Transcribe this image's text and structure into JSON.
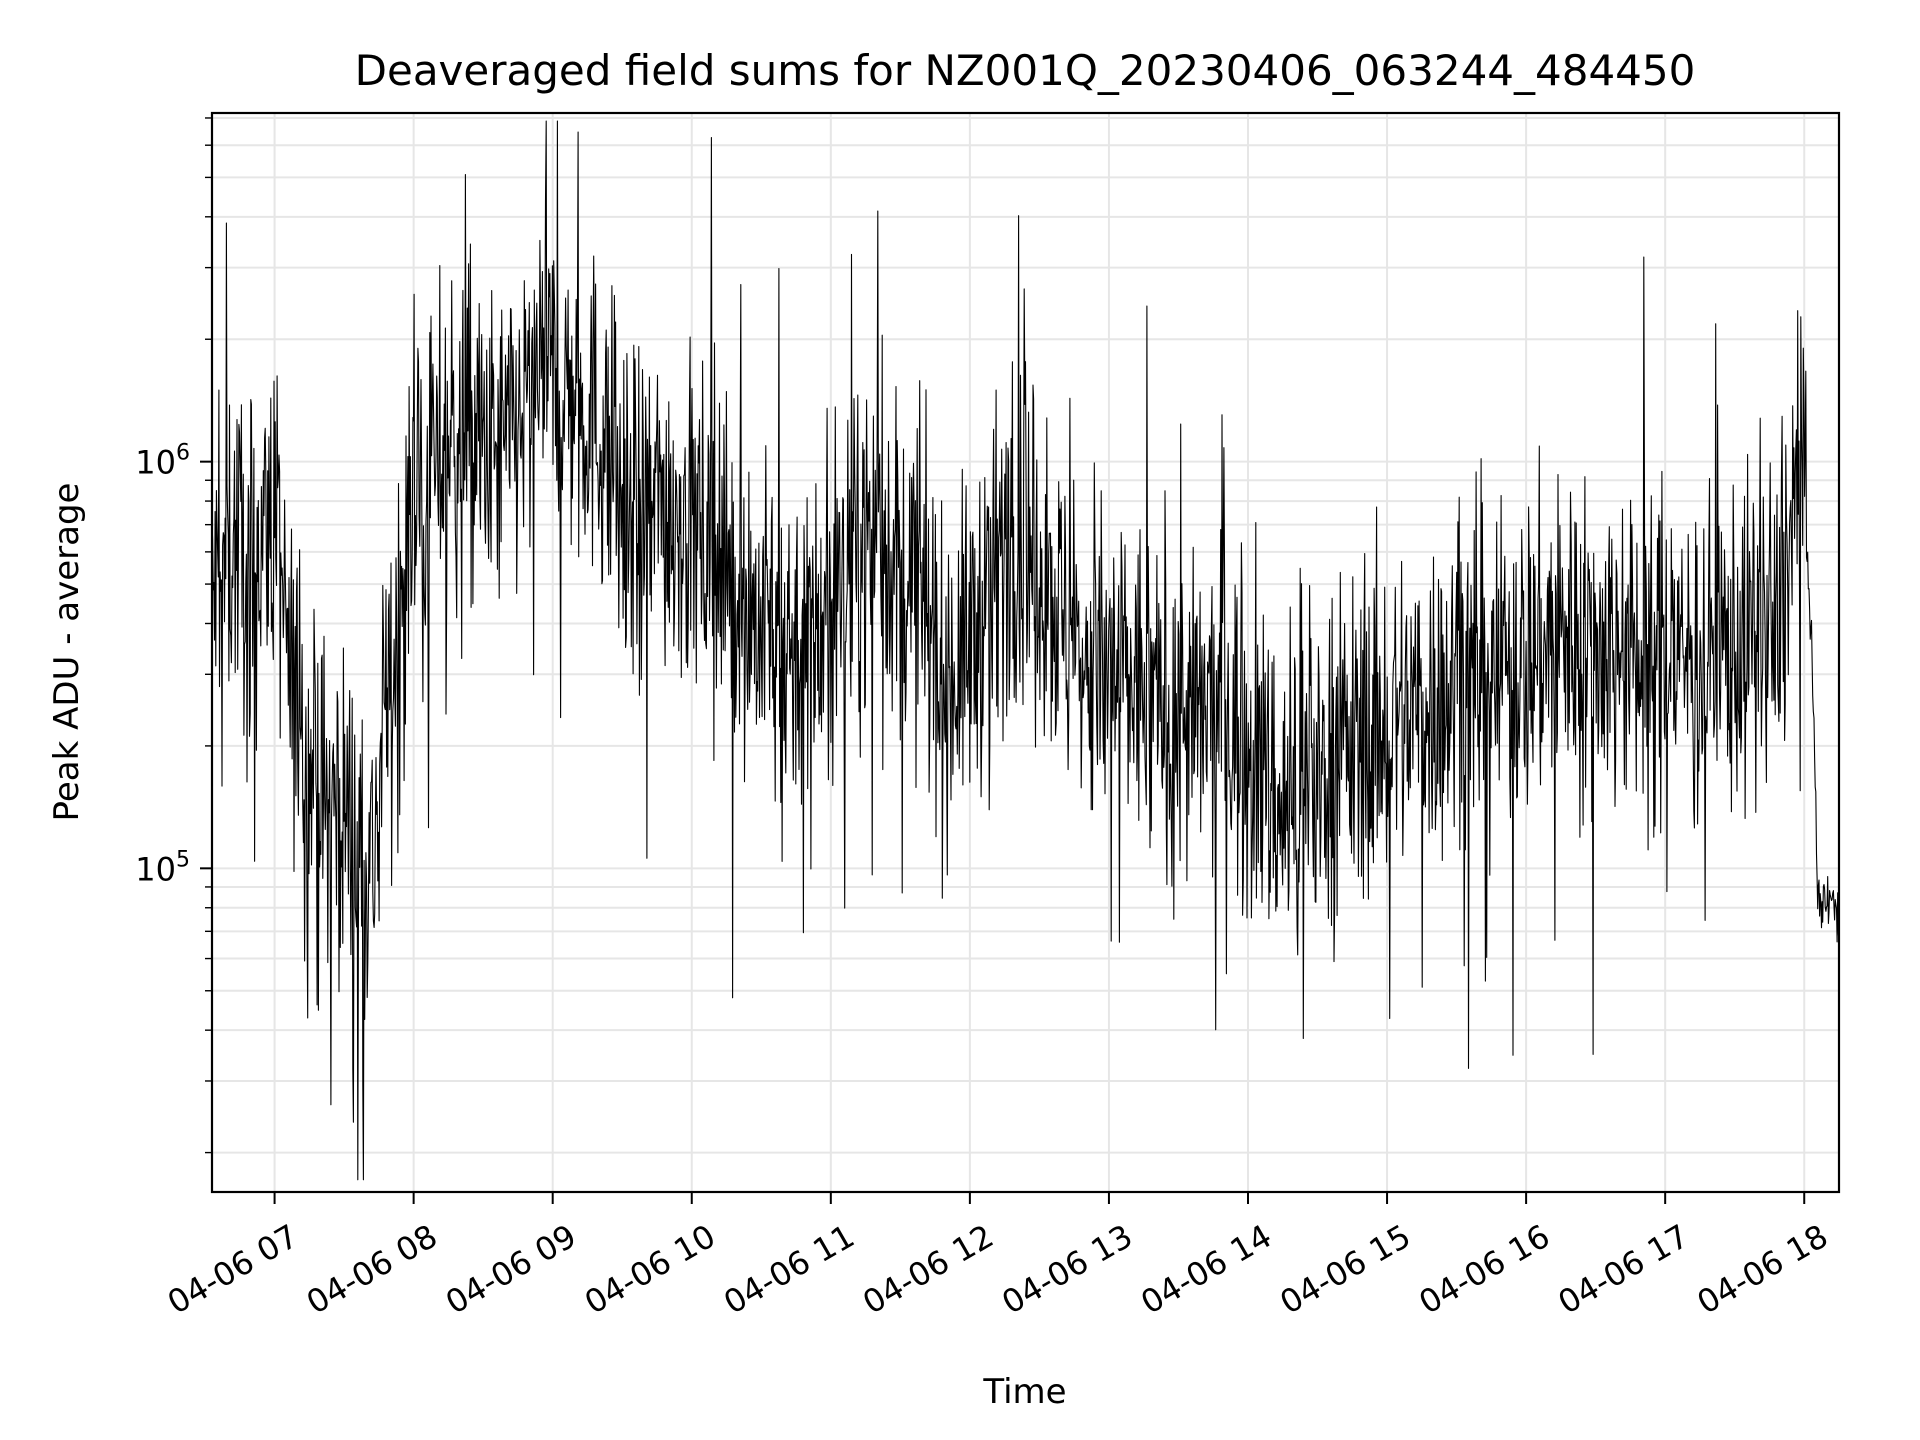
{
  "chart_data": {
    "type": "line",
    "title": "Deaveraged field sums for NZ001Q_20230406_063244_484450",
    "xlabel": "Time",
    "ylabel": "Peak ADU - average",
    "yscale": "log",
    "ylim": [
      16000,
      7200000
    ],
    "xlim_hours": [
      6.55,
      18.25
    ],
    "x_tick_labels": [
      "04-06 07",
      "04-06 08",
      "04-06 09",
      "04-06 10",
      "04-06 11",
      "04-06 12",
      "04-06 13",
      "04-06 14",
      "04-06 15",
      "04-06 16",
      "04-06 17",
      "04-06 18"
    ],
    "y_tick_labels": [
      {
        "base": "10",
        "exp": "5",
        "value": 100000
      },
      {
        "base": "10",
        "exp": "6",
        "value": 1000000
      }
    ],
    "grid": true,
    "line_color": "#000000",
    "series": [
      {
        "x_hours": [
          6.55,
          6.7,
          6.85,
          7.0,
          7.1,
          7.3,
          7.5,
          7.7,
          7.8,
          8.0,
          8.3,
          8.6,
          8.9,
          9.0,
          9.3,
          9.6,
          9.8,
          10.0,
          10.3,
          10.6,
          10.9,
          11.0,
          11.3,
          11.6,
          11.8,
          12.0,
          12.3,
          12.5,
          12.8,
          13.0,
          13.3,
          13.6,
          13.8,
          14.0,
          14.3,
          14.5,
          14.8,
          15.0,
          15.3,
          15.6,
          15.8,
          16.0,
          16.3,
          16.6,
          16.8,
          17.0,
          17.3,
          17.6,
          17.8,
          17.95,
          18.0,
          18.05,
          18.1,
          18.2,
          18.25
        ],
        "y": [
          450000,
          650000,
          550000,
          800000,
          300000,
          150000,
          140000,
          100000,
          220000,
          850000,
          1200000,
          1000000,
          1500000,
          1600000,
          1300000,
          650000,
          800000,
          700000,
          500000,
          350000,
          380000,
          420000,
          700000,
          500000,
          280000,
          350000,
          700000,
          550000,
          320000,
          300000,
          270000,
          220000,
          250000,
          200000,
          130000,
          180000,
          200000,
          230000,
          260000,
          280000,
          300000,
          330000,
          380000,
          350000,
          320000,
          350000,
          330000,
          360000,
          370000,
          850000,
          800000,
          400000,
          80000,
          85000,
          70000
        ]
      }
    ]
  }
}
